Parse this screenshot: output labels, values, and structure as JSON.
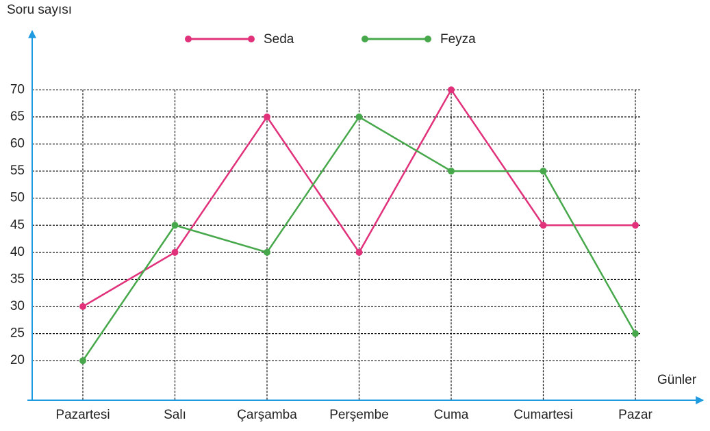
{
  "chart_data": {
    "type": "line",
    "y_label": "Soru sayısı",
    "x_label": "Günler",
    "categories": [
      "Pazartesi",
      "Salı",
      "Çarşamba",
      "Perşembe",
      "Cuma",
      "Cumartesi",
      "Pazar"
    ],
    "series": [
      {
        "name": "Seda",
        "color": "#e0317a",
        "values": [
          30,
          40,
          65,
          40,
          70,
          45,
          45
        ]
      },
      {
        "name": "Feyza",
        "color": "#46a84a",
        "values": [
          20,
          45,
          40,
          65,
          55,
          55,
          25
        ]
      }
    ],
    "ylim": [
      12.7,
      80.9
    ],
    "yticks": [
      20,
      25,
      30,
      35,
      40,
      45,
      50,
      55,
      60,
      65,
      70
    ],
    "grid": true
  }
}
